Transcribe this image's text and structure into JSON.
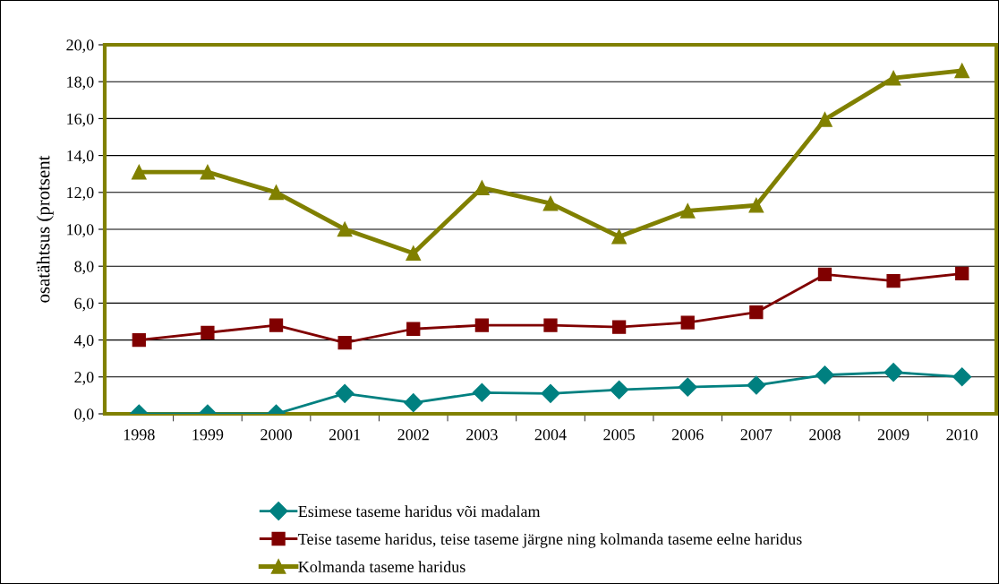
{
  "chart_data": {
    "type": "line",
    "ylabel": "osatähtsus (protsent",
    "categories": [
      "1998",
      "1999",
      "2000",
      "2001",
      "2002",
      "2003",
      "2004",
      "2005",
      "2006",
      "2007",
      "2008",
      "2009",
      "2010"
    ],
    "series": [
      {
        "name": "Esimese taseme haridus või madalam",
        "color": "#008080",
        "marker": "diamond",
        "values": [
          0.0,
          0.0,
          0.0,
          1.1,
          0.6,
          1.15,
          1.1,
          1.3,
          1.45,
          1.55,
          2.1,
          2.25,
          2.0
        ]
      },
      {
        "name": "Teise taseme haridus, teise taseme järgne ning kolmanda taseme eelne haridus",
        "color": "#800000",
        "marker": "square",
        "values": [
          4.0,
          4.4,
          4.8,
          3.85,
          4.6,
          4.8,
          4.8,
          4.7,
          4.95,
          5.5,
          7.55,
          7.2,
          7.6
        ]
      },
      {
        "name": "Kolmanda taseme haridus",
        "color": "#808000",
        "marker": "triangle",
        "values": [
          13.1,
          13.1,
          12.0,
          10.0,
          8.7,
          12.25,
          11.4,
          9.6,
          11.0,
          11.3,
          15.95,
          18.2,
          18.6
        ]
      }
    ],
    "ylim": [
      0,
      20
    ],
    "yticks": [
      {
        "value": 0,
        "label": "0,0"
      },
      {
        "value": 2,
        "label": "2,0"
      },
      {
        "value": 4,
        "label": "4,0"
      },
      {
        "value": 6,
        "label": "6,0"
      },
      {
        "value": 8,
        "label": "8,0"
      },
      {
        "value": 10,
        "label": "10,0"
      },
      {
        "value": 12,
        "label": "12,0"
      },
      {
        "value": 14,
        "label": "14,0"
      },
      {
        "value": 16,
        "label": "16,0"
      },
      {
        "value": 18,
        "label": "18,0"
      },
      {
        "value": 20,
        "label": "20,0"
      }
    ],
    "grid": "y",
    "legend": "bottom",
    "line_style": "solid"
  }
}
